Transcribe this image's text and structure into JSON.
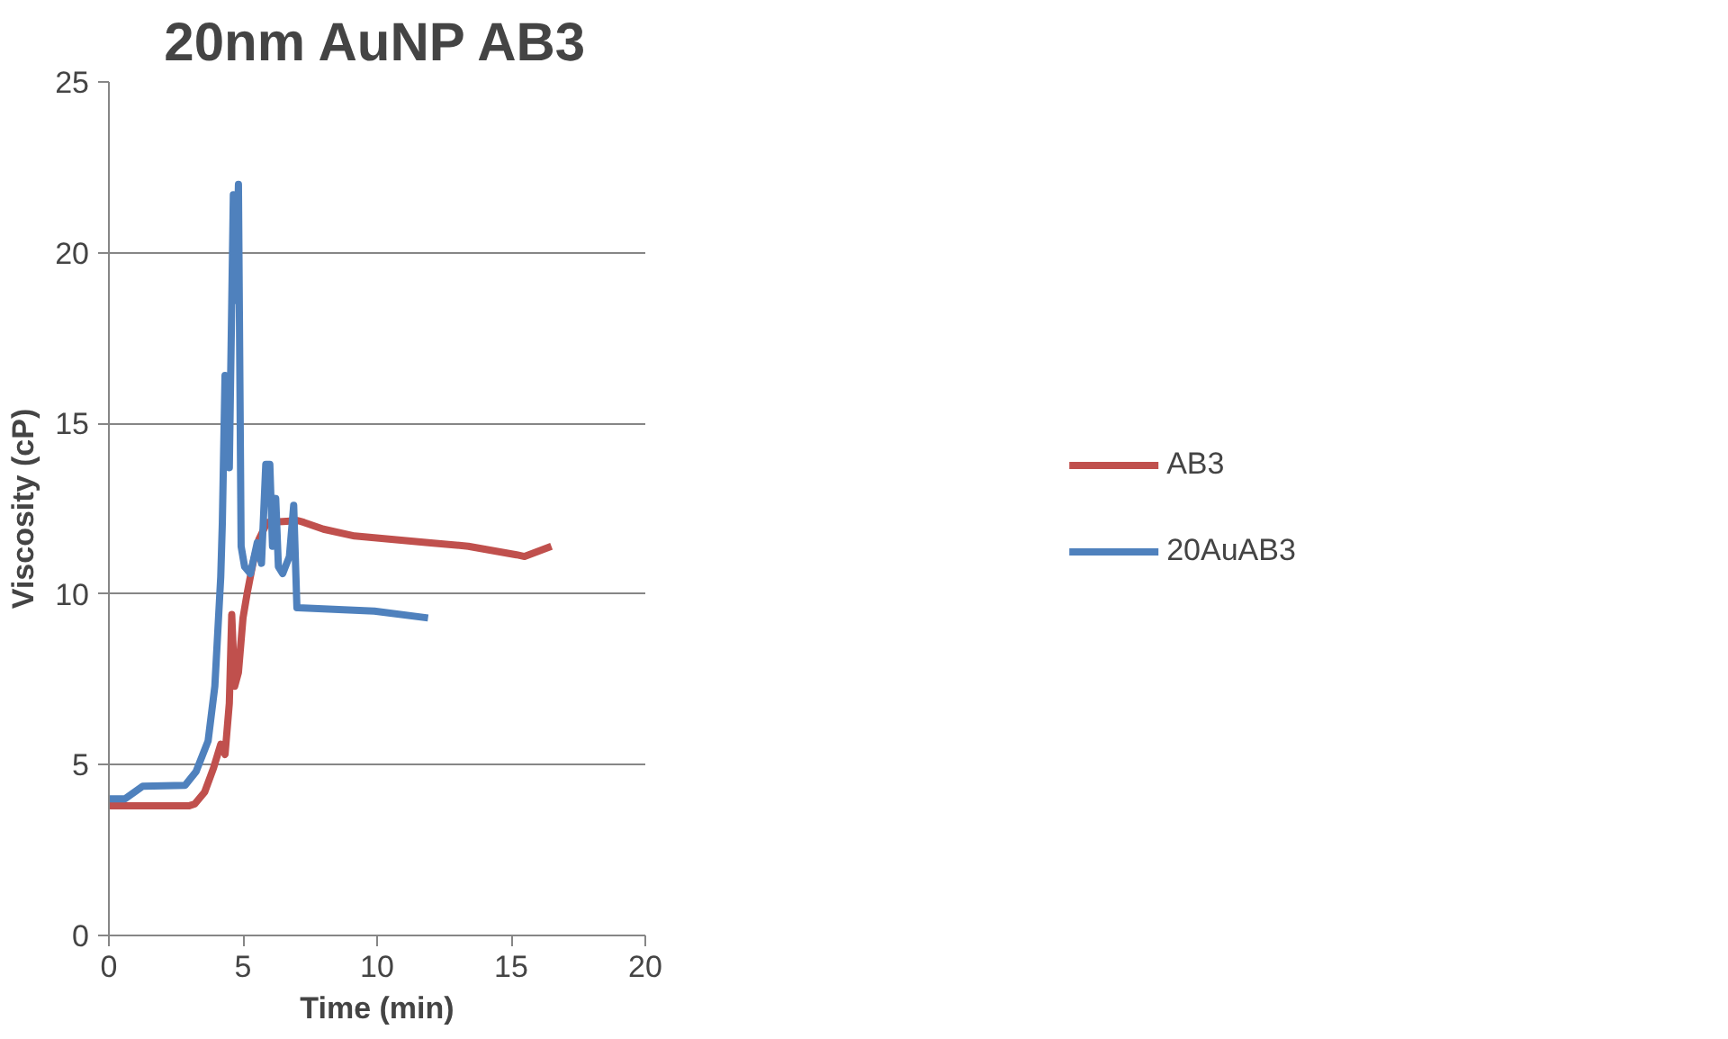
{
  "chart_data": {
    "type": "line",
    "title": "20nm AuNP AB3",
    "xlabel": "Time (min)",
    "ylabel": "Viscosity (cP)",
    "xlim": [
      0,
      20
    ],
    "xticks": [
      0,
      5,
      10,
      15,
      20
    ],
    "ylim": [
      0,
      25
    ],
    "yticks": [
      0,
      5,
      10,
      15,
      20,
      25
    ],
    "grid": "y",
    "legend": "right",
    "marker": "none",
    "line_style": "solid",
    "series": [
      {
        "name": "AB3",
        "color": "#c0504d",
        "x": [
          0,
          1,
          2,
          3,
          3.2,
          3.57,
          3.9,
          4.17,
          4.33,
          4.49,
          4.58,
          4.69,
          4.83,
          5.0,
          5.15,
          5.37,
          5.59,
          5.9,
          7.05,
          7.27,
          8.0,
          9.16,
          12.0,
          13.4,
          15.2,
          15.5,
          16.5
        ],
        "values": [
          3.8,
          3.8,
          3.8,
          3.8,
          3.85,
          4.2,
          4.9,
          5.6,
          5.3,
          6.8,
          9.4,
          7.3,
          7.7,
          9.3,
          10.0,
          10.9,
          11.6,
          12.1,
          12.15,
          12.1,
          11.9,
          11.7,
          11.5,
          11.4,
          11.15,
          11.1,
          11.4
        ]
      },
      {
        "name": "20AuAB3",
        "color": "#4f81bd",
        "x": [
          0,
          0.6,
          1.26,
          2.84,
          3.25,
          3.7,
          3.95,
          4.17,
          4.23,
          4.33,
          4.49,
          4.64,
          4.74,
          4.83,
          4.93,
          5.06,
          5.28,
          5.53,
          5.69,
          5.85,
          6.0,
          6.1,
          6.22,
          6.32,
          6.48,
          6.73,
          6.89,
          7.01,
          7.05,
          9.9,
          11.9
        ],
        "values": [
          4.0,
          4.0,
          4.37,
          4.4,
          4.8,
          5.7,
          7.3,
          10.5,
          12.1,
          16.4,
          13.7,
          21.7,
          18.6,
          22.0,
          11.4,
          10.8,
          10.6,
          11.5,
          10.9,
          13.8,
          13.8,
          11.4,
          12.8,
          10.8,
          10.6,
          11.1,
          12.6,
          9.6,
          9.6,
          9.5,
          9.3
        ]
      }
    ]
  }
}
